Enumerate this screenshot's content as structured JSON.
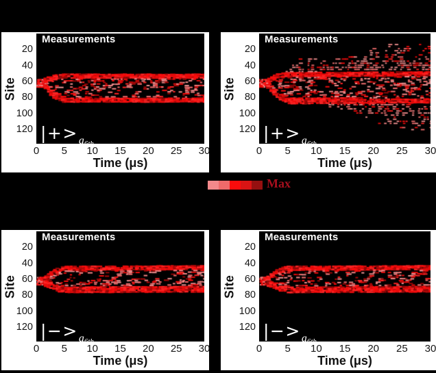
{
  "figure": {
    "bg": "#000000",
    "panel_bg": "#ffffff",
    "text_color": "#151515",
    "plot_bg": "#000000"
  },
  "palette": {
    "bright": [
      "#f90d0d",
      "#ea0b0b",
      "#ff2424"
    ],
    "light": [
      "#f28484",
      "#ef9191",
      "#f06d6d"
    ],
    "dark": [
      "#b30808",
      "#930707"
    ]
  },
  "colorbar": {
    "label": "Max",
    "label_color": "#a60f1d",
    "blocks": [
      "#f4898b",
      "#ef6a6a",
      "#fa0c0c",
      "#d91414",
      "#951010"
    ]
  },
  "chart_data": [
    {
      "type": "heatmap",
      "panel": "top-left",
      "title": "Measurements",
      "state_label": "|+>",
      "state_sub": "a",
      "state_subsub": "6th",
      "xlabel": "Time (μs)",
      "ylabel": "Site",
      "x_ticks": [
        0,
        5,
        10,
        15,
        20,
        25,
        30
      ],
      "y_ticks": [
        20,
        40,
        60,
        80,
        100,
        120
      ],
      "x_max": 30,
      "site_axis_max": 138,
      "seed": 7,
      "top_edge": 5,
      "bottom_edge": 7,
      "blob": {
        "t0": 0,
        "t1": 1.7,
        "s0": 57,
        "s1": 66
      },
      "band": [
        {
          "t": 1.3,
          "top": 55,
          "bottom": 68
        },
        {
          "t": 2.6,
          "top": 51,
          "bottom": 78
        },
        {
          "t": 4.5,
          "top": 50,
          "bottom": 85
        },
        {
          "t": 30,
          "top": 50,
          "bottom": 86
        }
      ],
      "holes": [
        {
          "t0": 11,
          "t1": 26,
          "s0": 68,
          "s1": 76,
          "f": 0.3
        },
        {
          "t0": 5,
          "t1": 10,
          "s0": 60,
          "s1": 66,
          "f": 0.5
        }
      ],
      "fan_top": null,
      "fan_bottom": null
    },
    {
      "type": "heatmap",
      "panel": "top-right",
      "title": "Measurements",
      "state_label": "|+>",
      "state_sub": "a",
      "state_subsub": "6th",
      "xlabel": "Time (μs)",
      "ylabel": "Site",
      "x_ticks": [
        0,
        5,
        10,
        15,
        20,
        25,
        30
      ],
      "y_ticks": [
        20,
        40,
        60,
        80,
        100,
        120
      ],
      "x_max": 30,
      "site_axis_max": 138,
      "seed": 13,
      "top_edge": 5,
      "bottom_edge": 7,
      "blob": {
        "t0": 0,
        "t1": 1.7,
        "s0": 57,
        "s1": 66
      },
      "band": [
        {
          "t": 1.3,
          "top": 55,
          "bottom": 68
        },
        {
          "t": 2.6,
          "top": 50,
          "bottom": 78
        },
        {
          "t": 4.5,
          "top": 48,
          "bottom": 86
        },
        {
          "t": 30,
          "top": 47,
          "bottom": 87
        }
      ],
      "holes": [
        {
          "t0": 8,
          "t1": 20,
          "s0": 63,
          "s1": 70,
          "f": 0.45
        }
      ],
      "fan_top": [
        {
          "t": 4.2,
          "v": 48
        },
        {
          "t": 6,
          "v": 31
        },
        {
          "t": 11,
          "v": 28
        },
        {
          "t": 14,
          "v": 24
        },
        {
          "t": 18,
          "v": 18
        },
        {
          "t": 22,
          "v": 13
        },
        {
          "t": 30,
          "v": 11
        }
      ],
      "fan_bottom": [
        {
          "t": 10.5,
          "v": 87
        },
        {
          "t": 13,
          "v": 94
        },
        {
          "t": 16,
          "v": 101
        },
        {
          "t": 19,
          "v": 108
        },
        {
          "t": 22,
          "v": 115
        },
        {
          "t": 25,
          "v": 120
        },
        {
          "t": 30,
          "v": 123
        }
      ]
    },
    {
      "type": "heatmap",
      "panel": "bottom-left",
      "title": "Measurements",
      "state_label": "|−>",
      "state_sub": "a",
      "state_subsub": "6th",
      "xlabel": "Time (μs)",
      "ylabel": "Site",
      "x_ticks": [
        0,
        5,
        10,
        15,
        20,
        25,
        30
      ],
      "y_ticks": [
        20,
        40,
        60,
        80,
        100,
        120
      ],
      "x_max": 30,
      "site_axis_max": 138,
      "seed": 5,
      "top_edge": 5,
      "bottom_edge": 8,
      "blob": {
        "t0": 0,
        "t1": 1.7,
        "s0": 57,
        "s1": 66
      },
      "band": [
        {
          "t": 1.3,
          "top": 55,
          "bottom": 68
        },
        {
          "t": 3,
          "top": 46,
          "bottom": 73
        },
        {
          "t": 4.5,
          "top": 43,
          "bottom": 75
        },
        {
          "t": 30,
          "top": 42,
          "bottom": 75
        }
      ],
      "holes": [
        {
          "t0": 7,
          "t1": 16,
          "s0": 52,
          "s1": 60,
          "f": 0.4
        },
        {
          "t0": 18,
          "t1": 24,
          "s0": 50,
          "s1": 58,
          "f": 0.5
        }
      ],
      "fan_top": null,
      "fan_bottom": null
    },
    {
      "type": "heatmap",
      "panel": "bottom-right",
      "title": "Measurements",
      "state_label": "|−>",
      "state_sub": "a",
      "state_subsub": "6th",
      "xlabel": "Time (μs)",
      "ylabel": "Site",
      "x_ticks": [
        0,
        5,
        10,
        15,
        20,
        25,
        30
      ],
      "y_ticks": [
        20,
        40,
        60,
        80,
        100,
        120
      ],
      "x_max": 30,
      "site_axis_max": 138,
      "seed": 9,
      "top_edge": 5,
      "bottom_edge": 8,
      "blob": {
        "t0": 0,
        "t1": 1.7,
        "s0": 57,
        "s1": 66
      },
      "band": [
        {
          "t": 1.3,
          "top": 55,
          "bottom": 68
        },
        {
          "t": 3,
          "top": 46,
          "bottom": 73
        },
        {
          "t": 4.5,
          "top": 43,
          "bottom": 75
        },
        {
          "t": 30,
          "top": 42,
          "bottom": 75
        }
      ],
      "holes": [
        {
          "t0": 9,
          "t1": 18,
          "s0": 52,
          "s1": 60,
          "f": 0.45
        }
      ],
      "fan_top": null,
      "fan_bottom": null
    }
  ]
}
